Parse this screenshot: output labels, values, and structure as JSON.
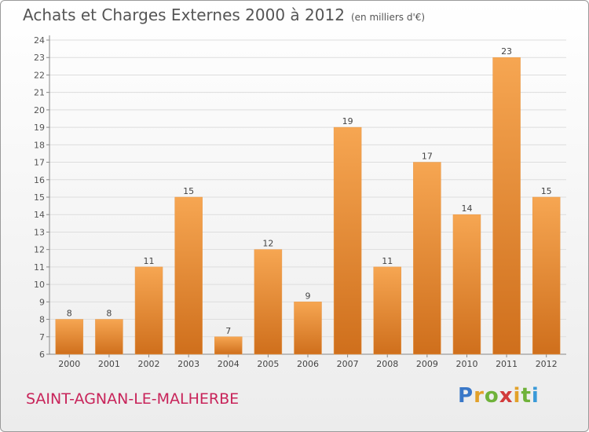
{
  "header": {
    "title": "Achats et Charges Externes 2000 à 2012",
    "subtitle": "(en milliers d'€)"
  },
  "footer": {
    "place": "SAINT-AGNAN-LE-MALHERBE",
    "brand_letters": [
      "P",
      "r",
      "o",
      "x",
      "i",
      "t",
      "i"
    ],
    "brand_colors": [
      "#3a78c8",
      "#e2a12a",
      "#6fb23a",
      "#d23b3b",
      "#e2a12a",
      "#6fb23a",
      "#3a9ad8"
    ]
  },
  "chart_data": {
    "type": "bar",
    "categories": [
      "2000",
      "2001",
      "2002",
      "2003",
      "2004",
      "2005",
      "2006",
      "2007",
      "2008",
      "2009",
      "2010",
      "2011",
      "2012"
    ],
    "values": [
      8,
      8,
      11,
      15,
      7,
      12,
      9,
      19,
      11,
      17,
      14,
      23,
      15
    ],
    "title": "Achats et Charges Externes 2000 à 2012",
    "xlabel": "",
    "ylabel": "",
    "ylim": [
      6,
      24
    ],
    "yticks": [
      6,
      7,
      8,
      9,
      10,
      11,
      12,
      13,
      14,
      15,
      16,
      17,
      18,
      19,
      20,
      21,
      22,
      23,
      24
    ],
    "grid": true,
    "bar_color_top": "#f6a652",
    "bar_color_bottom": "#cf6f1c"
  }
}
